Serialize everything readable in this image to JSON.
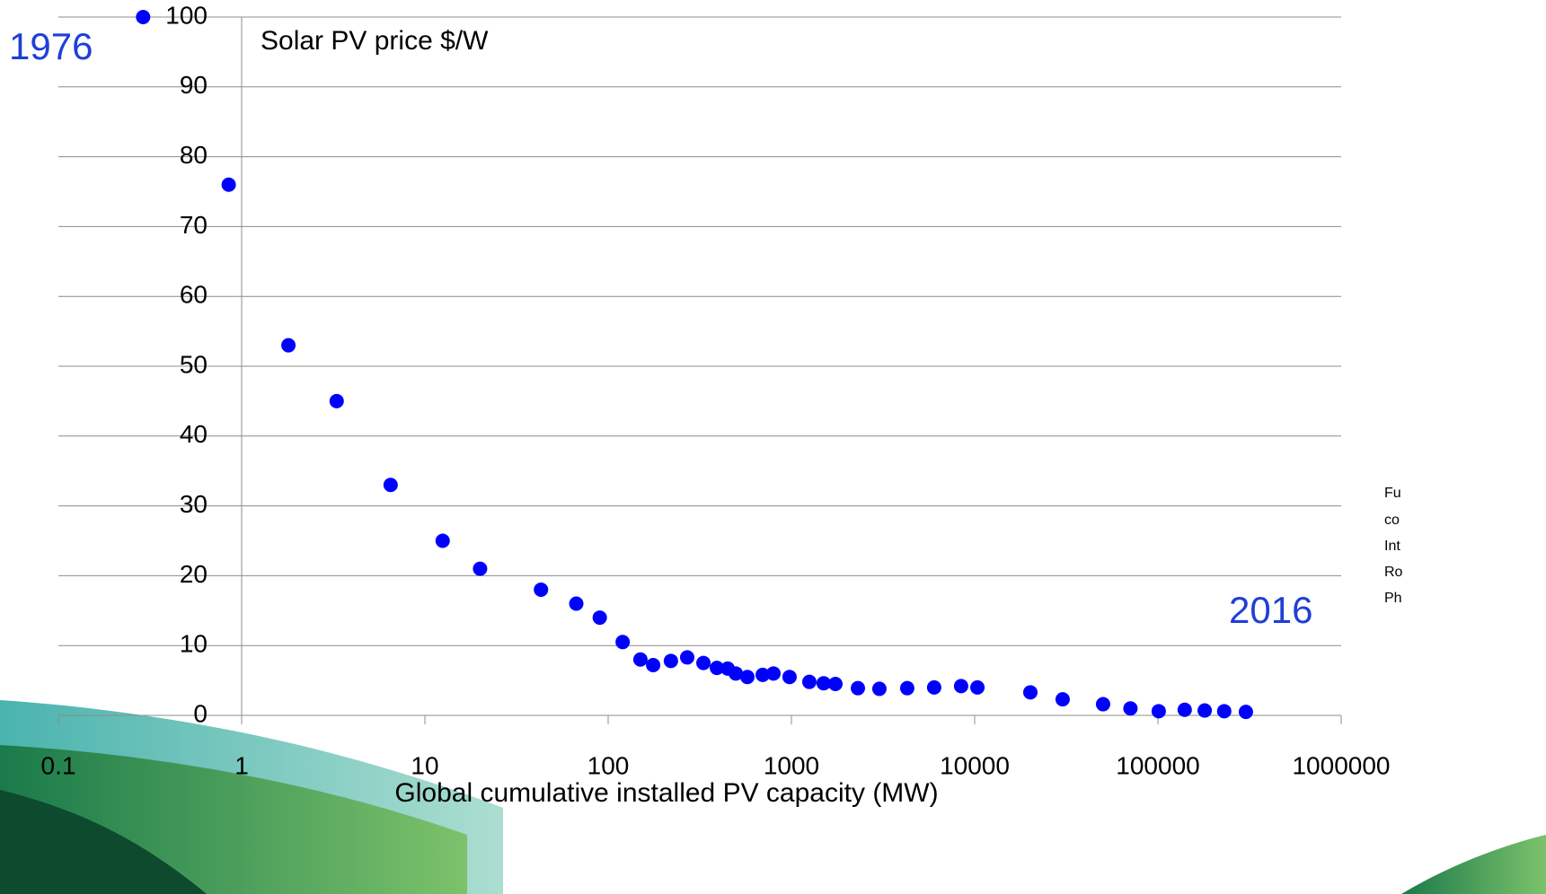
{
  "chart_data": {
    "type": "scatter",
    "title": "Solar PV price $/W",
    "x_label": "Global cumulative installed PV capacity (MW)",
    "annotations": [
      "1976",
      "2016"
    ],
    "side_note": [
      "Fu",
      "co",
      "Int",
      "Ro",
      "Ph"
    ],
    "x_scale": "log",
    "xlim": [
      0.1,
      1000000
    ],
    "xticks": [
      0.1,
      1,
      10,
      100,
      1000,
      10000,
      100000,
      1000000
    ],
    "ylim": [
      0,
      100
    ],
    "yticks": [
      0,
      10,
      20,
      30,
      40,
      50,
      60,
      70,
      80,
      90,
      100
    ],
    "grid": true,
    "color": "#0000ff",
    "x": [
      0.29,
      0.85,
      1.8,
      3.3,
      6.5,
      12.5,
      20,
      43,
      67,
      90,
      120,
      150,
      176,
      220,
      270,
      331,
      392,
      449,
      497,
      575,
      697,
      798,
      977,
      1253,
      1500,
      1738,
      2306,
      3020,
      4285,
      6011,
      8433,
      10350,
      20130,
      30200,
      50200,
      70800,
      101000,
      140000,
      180000,
      230000,
      302000
    ],
    "values": [
      100,
      76,
      53,
      45,
      33,
      25,
      21,
      18,
      16,
      14,
      10.5,
      8,
      7.2,
      7.8,
      8.3,
      7.5,
      6.8,
      6.7,
      6,
      5.5,
      5.8,
      6,
      5.5,
      4.8,
      4.6,
      4.5,
      3.9,
      3.8,
      3.9,
      4,
      4.2,
      4,
      3.3,
      2.3,
      1.6,
      1,
      0.6,
      0.8,
      0.7,
      0.6,
      0.5
    ]
  }
}
